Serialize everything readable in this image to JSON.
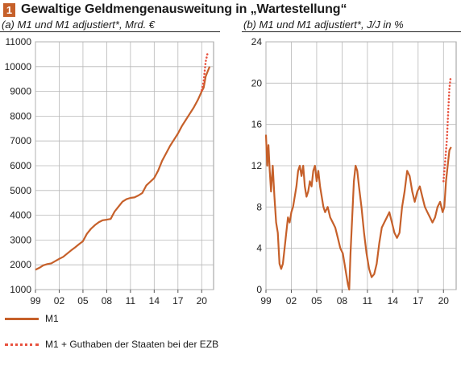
{
  "header": {
    "figure_number": "1",
    "title": "Gewaltige Geldmengenausweitung in „Wartestellung“"
  },
  "colors": {
    "accent": "#c6602a",
    "dotted": "#e8523f"
  },
  "legend": [
    {
      "label": "M1",
      "style": "solid"
    },
    {
      "label": "M1 + Guthaben der Staaten bei der EZB",
      "style": "dotted"
    }
  ],
  "chart_data": [
    {
      "type": "line",
      "subtitle": "(a) M1 und M1 adjustiert*, Mrd. €",
      "ylim": [
        1000,
        11000
      ],
      "yticks": [
        1000,
        2000,
        3000,
        4000,
        5000,
        6000,
        7000,
        8000,
        9000,
        10000,
        11000
      ],
      "xlim": [
        1999,
        2021.5
      ],
      "xticks": [
        1999,
        2002,
        2005,
        2008,
        2011,
        2014,
        2017,
        2020
      ],
      "xtick_labels": [
        "99",
        "02",
        "05",
        "08",
        "11",
        "14",
        "17",
        "20"
      ],
      "grid": true,
      "series": [
        {
          "name": "M1",
          "style": "solid",
          "x": [
            1999.0,
            1999.5,
            2000.0,
            2000.5,
            2001.0,
            2001.5,
            2002.0,
            2002.5,
            2003.0,
            2003.5,
            2004.0,
            2004.5,
            2005.0,
            2005.5,
            2006.0,
            2006.5,
            2007.0,
            2007.5,
            2008.0,
            2008.5,
            2009.0,
            2009.5,
            2010.0,
            2010.5,
            2011.0,
            2011.5,
            2012.0,
            2012.5,
            2013.0,
            2013.5,
            2014.0,
            2014.5,
            2015.0,
            2015.5,
            2016.0,
            2016.5,
            2017.0,
            2017.5,
            2018.0,
            2018.5,
            2019.0,
            2019.5,
            2020.0,
            2020.25,
            2020.5,
            2020.75,
            2021.0
          ],
          "y": [
            1800,
            1880,
            1980,
            2030,
            2060,
            2150,
            2240,
            2320,
            2450,
            2580,
            2700,
            2830,
            2950,
            3250,
            3450,
            3600,
            3720,
            3800,
            3820,
            3850,
            4150,
            4350,
            4550,
            4650,
            4700,
            4720,
            4800,
            4900,
            5200,
            5350,
            5500,
            5800,
            6200,
            6500,
            6800,
            7050,
            7300,
            7600,
            7850,
            8100,
            8350,
            8650,
            9000,
            9150,
            9600,
            9800,
            10000
          ]
        },
        {
          "name": "M1 + Guthaben der Staaten bei der EZB",
          "style": "dotted",
          "x": [
            2020.0,
            2020.25,
            2020.5,
            2020.75
          ],
          "y": [
            9050,
            9400,
            10200,
            10550
          ]
        }
      ]
    },
    {
      "type": "line",
      "subtitle": "(b) M1 und M1 adjustiert*, J/J in %",
      "ylim": [
        0,
        24
      ],
      "yticks": [
        0,
        4,
        8,
        12,
        16,
        20,
        24
      ],
      "xlim": [
        1999,
        2021.5
      ],
      "xticks": [
        1999,
        2002,
        2005,
        2008,
        2011,
        2014,
        2017,
        2020
      ],
      "xtick_labels": [
        "99",
        "02",
        "05",
        "08",
        "11",
        "14",
        "17",
        "20"
      ],
      "grid": true,
      "series": [
        {
          "name": "M1",
          "style": "solid",
          "x": [
            1999.0,
            1999.15,
            1999.3,
            1999.45,
            1999.6,
            1999.8,
            2000.0,
            2000.2,
            2000.4,
            2000.6,
            2000.8,
            2001.0,
            2001.2,
            2001.4,
            2001.6,
            2001.8,
            2002.0,
            2002.2,
            2002.4,
            2002.6,
            2002.8,
            2003.0,
            2003.2,
            2003.4,
            2003.6,
            2003.8,
            2004.0,
            2004.2,
            2004.4,
            2004.6,
            2004.8,
            2005.0,
            2005.2,
            2005.4,
            2005.6,
            2005.8,
            2006.0,
            2006.3,
            2006.6,
            2006.9,
            2007.2,
            2007.5,
            2007.8,
            2008.1,
            2008.3,
            2008.5,
            2008.7,
            2008.85,
            2009.0,
            2009.2,
            2009.4,
            2009.6,
            2009.8,
            2010.0,
            2010.3,
            2010.6,
            2010.9,
            2011.2,
            2011.5,
            2011.8,
            2012.1,
            2012.4,
            2012.7,
            2013.0,
            2013.3,
            2013.6,
            2013.9,
            2014.2,
            2014.5,
            2014.8,
            2015.1,
            2015.4,
            2015.7,
            2016.0,
            2016.3,
            2016.6,
            2016.9,
            2017.2,
            2017.5,
            2017.8,
            2018.1,
            2018.4,
            2018.7,
            2019.0,
            2019.3,
            2019.6,
            2019.9,
            2020.1,
            2020.3,
            2020.5,
            2020.7,
            2020.9
          ],
          "y": [
            15.0,
            12.0,
            14.0,
            11.5,
            9.5,
            12.0,
            9.0,
            6.5,
            5.5,
            2.5,
            2.0,
            2.5,
            4.0,
            5.5,
            7.0,
            6.5,
            7.5,
            8.0,
            9.0,
            10.0,
            11.5,
            12.0,
            11.0,
            12.0,
            10.0,
            9.0,
            9.5,
            10.5,
            10.0,
            11.5,
            12.0,
            10.5,
            11.5,
            10.0,
            9.0,
            8.0,
            7.5,
            8.0,
            7.0,
            6.5,
            6.0,
            5.0,
            4.0,
            3.5,
            2.5,
            1.5,
            0.5,
            0.0,
            3.5,
            7.0,
            10.5,
            12.0,
            11.5,
            10.0,
            8.0,
            5.5,
            3.5,
            2.0,
            1.2,
            1.5,
            2.5,
            4.5,
            6.0,
            6.5,
            7.0,
            7.5,
            6.5,
            5.5,
            5.0,
            5.5,
            8.0,
            9.5,
            11.5,
            11.0,
            9.5,
            8.5,
            9.5,
            10.0,
            9.0,
            8.0,
            7.5,
            7.0,
            6.5,
            7.0,
            8.0,
            8.5,
            7.5,
            8.0,
            10.5,
            12.0,
            13.5,
            13.8
          ]
        },
        {
          "name": "M1 + Guthaben der Staaten bei der EZB",
          "style": "dotted",
          "x": [
            2020.0,
            2020.2,
            2020.4,
            2020.55,
            2020.7,
            2020.85
          ],
          "y": [
            10.5,
            12.5,
            14.5,
            17.0,
            19.5,
            20.6
          ]
        }
      ]
    }
  ]
}
